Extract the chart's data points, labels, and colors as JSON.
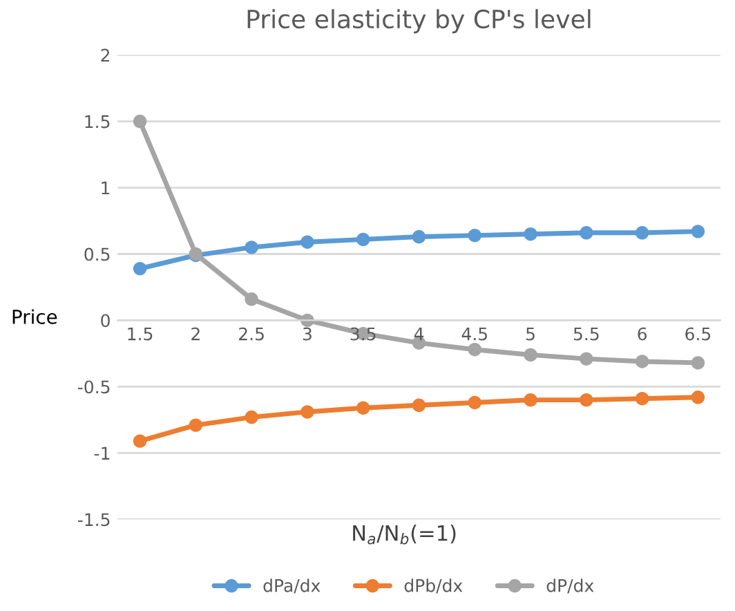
{
  "chart_data": {
    "type": "line",
    "title": "Price elasticity by CP's level",
    "xlabel": "N$_{a}$/N$_{b}$(=1)",
    "ylabel": "Price",
    "categories": [
      "1.5",
      "2",
      "2.5",
      "3",
      "3.5",
      "4",
      "4.5",
      "5",
      "5.5",
      "6",
      "6.5"
    ],
    "series": [
      {
        "name": "dPa/dx",
        "color": "#5b9bd5",
        "values": [
          0.39,
          0.49,
          0.55,
          0.59,
          0.61,
          0.63,
          0.64,
          0.65,
          0.66,
          0.66,
          0.67
        ]
      },
      {
        "name": "dPb/dx",
        "color": "#ed7d31",
        "values": [
          -0.91,
          -0.79,
          -0.73,
          -0.69,
          -0.66,
          -0.64,
          -0.62,
          -0.6,
          -0.6,
          -0.59,
          -0.58
        ]
      },
      {
        "name": "dP/dx",
        "color": "#a5a5a5",
        "values": [
          1.5,
          0.5,
          0.16,
          0,
          -0.1,
          -0.17,
          -0.22,
          -0.26,
          -0.29,
          -0.31,
          -0.32
        ]
      }
    ],
    "ylim": [
      -1.5,
      2
    ],
    "yticks": [
      -1.5,
      -1,
      -0.5,
      0,
      0.5,
      1,
      1.5,
      2
    ],
    "grid": "y",
    "legend": "bottom",
    "marker": "circle",
    "line_style": "solid"
  }
}
